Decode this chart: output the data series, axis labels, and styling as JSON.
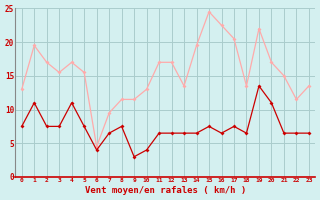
{
  "x": [
    0,
    1,
    2,
    3,
    4,
    5,
    6,
    7,
    8,
    9,
    10,
    11,
    12,
    13,
    14,
    15,
    16,
    17,
    18,
    19,
    20,
    21,
    22,
    23
  ],
  "rafales": [
    13,
    19.5,
    17,
    15.5,
    17,
    15.5,
    4.5,
    9.5,
    11.5,
    11.5,
    13,
    17,
    17,
    13.5,
    19.5,
    24.5,
    22.5,
    20.5,
    13.5,
    22,
    17,
    15,
    11.5,
    13.5
  ],
  "moyen": [
    7.5,
    11,
    7.5,
    7.5,
    11,
    7.5,
    4,
    6.5,
    7.5,
    3,
    4,
    6.5,
    6.5,
    6.5,
    6.5,
    7.5,
    6.5,
    7.5,
    6.5,
    13.5,
    11,
    6.5,
    6.5,
    6.5
  ],
  "color_rafales": "#ffaaaa",
  "color_moyen": "#cc0000",
  "bg_color": "#d4f0f0",
  "grid_color": "#aacccc",
  "xlabel": "Vent moyen/en rafales ( km/h )",
  "xlabel_color": "#cc0000",
  "tick_color": "#cc0000",
  "axis_line_color": "#cc0000",
  "left_spine_color": "#888888",
  "ylim": [
    0,
    25
  ],
  "yticks": [
    0,
    5,
    10,
    15,
    20,
    25
  ]
}
